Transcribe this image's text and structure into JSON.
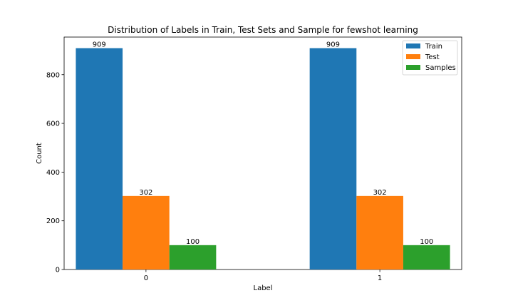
{
  "chart_data": {
    "type": "bar",
    "title": "Distribution of Labels in Train, Test Sets and Sample for fewshot learning",
    "xlabel": "Label",
    "ylabel": "Count",
    "categories": [
      "0",
      "1"
    ],
    "series": [
      {
        "name": "Train",
        "values": [
          909,
          909
        ],
        "color": "#1f77b4"
      },
      {
        "name": "Test",
        "values": [
          302,
          302
        ],
        "color": "#ff7f0e"
      },
      {
        "name": "Samples",
        "values": [
          100,
          100
        ],
        "color": "#2ca02c"
      }
    ],
    "ylim": [
      0,
      954.45
    ],
    "yticks": [
      0,
      200,
      400,
      600,
      800
    ],
    "grid": false,
    "legend_position": "top-right"
  }
}
